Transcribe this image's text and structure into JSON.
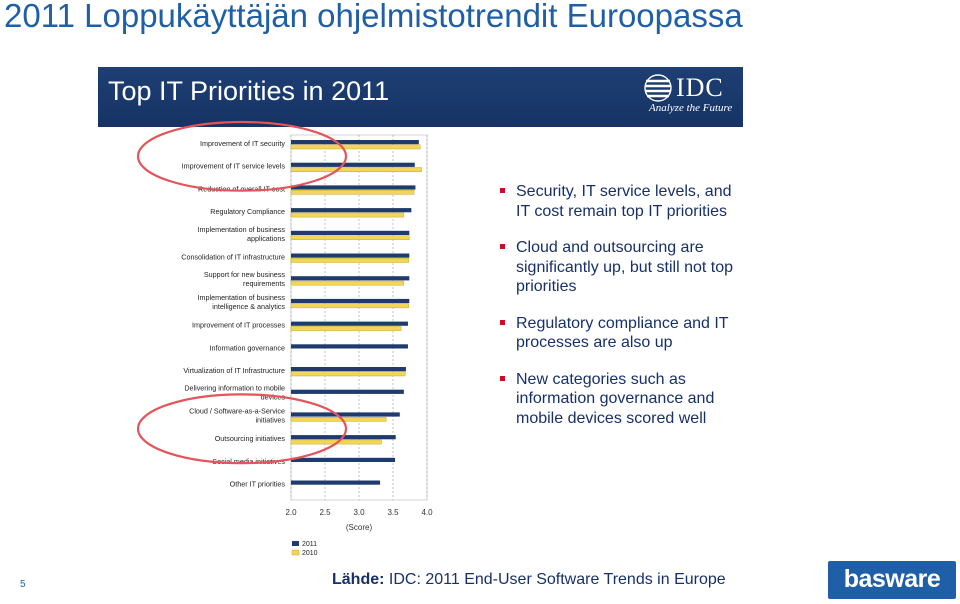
{
  "slide": {
    "title": "2011 Loppukäyttäjän ohjelmistotrendit Euroopassa",
    "page_number": "5",
    "source_label": "Lähde:",
    "source_text": " IDC: 2011 End-User Software Trends in Europe",
    "logo_text": "basware"
  },
  "banner": {
    "title": "Top IT Priorities in 2011",
    "idc_logo_text": "IDC",
    "idc_tagline": "Analyze the Future"
  },
  "bullets": [
    "Security, IT service levels, and IT cost remain top IT priorities",
    "Cloud and outsourcing are significantly up, but still not top priorities",
    "Regulatory compliance and IT processes are also up",
    "New categories such as information governance and mobile devices scored well"
  ],
  "colors": {
    "accent_blue": "#1f5fa8",
    "banner_navy": "#1e3f74",
    "series_2011": "#1f3b6e",
    "series_2010": "#f2d65a",
    "highlight_circle": "#e3545b",
    "bullet_marker": "#c8102e"
  },
  "chart_data": {
    "type": "bar",
    "orientation": "horizontal",
    "categories": [
      [
        "Improvement of IT security"
      ],
      [
        "Improvement of IT service levels"
      ],
      [
        "Reduction of overall IT cost"
      ],
      [
        "Regulatory Compliance"
      ],
      [
        "Implementation of business",
        "applications"
      ],
      [
        "Consolidation of IT infrastructure"
      ],
      [
        "Support for new business",
        "requirements"
      ],
      [
        "Implementation of business",
        "intelligence & analytics"
      ],
      [
        "Improvement of IT processes"
      ],
      [
        "Information governance"
      ],
      [
        "Virtualization of IT Infrastructure"
      ],
      [
        "Delivering information to mobile",
        "devices"
      ],
      [
        "Cloud / Software-as-a-Service",
        "initiatives"
      ],
      [
        "Outsourcing initiatives"
      ],
      [
        "Social media initiatives"
      ],
      [
        "Other IT priorities"
      ]
    ],
    "series": [
      {
        "name": "2011",
        "color": "#1f3b6e",
        "values": [
          3.88,
          3.82,
          3.83,
          3.77,
          3.74,
          3.74,
          3.74,
          3.74,
          3.72,
          3.72,
          3.69,
          3.66,
          3.6,
          3.54,
          3.53,
          3.31
        ]
      },
      {
        "name": "2010",
        "color": "#f2d65a",
        "values": [
          3.9,
          3.92,
          3.81,
          3.66,
          3.74,
          3.73,
          3.66,
          3.73,
          3.62,
          null,
          3.68,
          null,
          3.4,
          3.33,
          null,
          null
        ]
      }
    ],
    "xlim": [
      2.0,
      4.0
    ],
    "x_ticks": [
      "2.0",
      "2.5",
      "3.0",
      "3.5",
      "4.0"
    ],
    "xlabel": "(Score)",
    "legend": [
      "2011",
      "2010"
    ],
    "legend_position": "bottom-left",
    "grid": "vertical dashed",
    "highlighted_groups": [
      [
        0,
        1
      ],
      [
        12,
        13
      ]
    ]
  }
}
